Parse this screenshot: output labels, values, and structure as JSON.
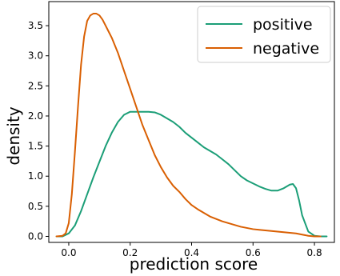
{
  "chart_data": {
    "type": "line",
    "xlabel": "prediction score",
    "ylabel": "density",
    "xlim": [
      -0.065,
      0.865
    ],
    "ylim": [
      -0.1,
      3.9
    ],
    "xticks": [
      0.0,
      0.2,
      0.4,
      0.6,
      0.8
    ],
    "yticks": [
      0.0,
      0.5,
      1.0,
      1.5,
      2.0,
      2.5,
      3.0,
      3.5
    ],
    "xtick_labels": [
      "0.0",
      "0.2",
      "0.4",
      "0.6",
      "0.8"
    ],
    "ytick_labels": [
      "0.0",
      "0.5",
      "1.0",
      "1.5",
      "2.0",
      "2.5",
      "3.0",
      "3.5"
    ],
    "grid": false,
    "legend": "top-right",
    "series": [
      {
        "name": "positive",
        "color": "#1b9e77",
        "x": [
          -0.04,
          -0.02,
          0.0,
          0.02,
          0.04,
          0.06,
          0.08,
          0.1,
          0.12,
          0.14,
          0.16,
          0.18,
          0.2,
          0.22,
          0.24,
          0.26,
          0.28,
          0.3,
          0.32,
          0.34,
          0.36,
          0.38,
          0.4,
          0.42,
          0.44,
          0.46,
          0.48,
          0.5,
          0.52,
          0.54,
          0.56,
          0.58,
          0.6,
          0.62,
          0.64,
          0.66,
          0.68,
          0.7,
          0.72,
          0.73,
          0.74,
          0.75,
          0.76,
          0.78,
          0.8,
          0.82,
          0.84
        ],
        "y": [
          0.0,
          0.0,
          0.05,
          0.18,
          0.42,
          0.7,
          0.98,
          1.24,
          1.5,
          1.72,
          1.9,
          2.02,
          2.07,
          2.07,
          2.07,
          2.07,
          2.06,
          2.02,
          1.96,
          1.9,
          1.82,
          1.72,
          1.64,
          1.56,
          1.48,
          1.42,
          1.36,
          1.28,
          1.2,
          1.1,
          1.0,
          0.93,
          0.88,
          0.83,
          0.79,
          0.76,
          0.76,
          0.8,
          0.86,
          0.87,
          0.8,
          0.6,
          0.35,
          0.08,
          0.01,
          0.0,
          0.0
        ]
      },
      {
        "name": "negative",
        "color": "#d95f02",
        "x": [
          -0.04,
          -0.02,
          -0.01,
          0.0,
          0.01,
          0.02,
          0.03,
          0.04,
          0.05,
          0.06,
          0.07,
          0.08,
          0.09,
          0.1,
          0.11,
          0.12,
          0.13,
          0.14,
          0.16,
          0.18,
          0.2,
          0.22,
          0.24,
          0.26,
          0.28,
          0.3,
          0.32,
          0.34,
          0.36,
          0.38,
          0.4,
          0.42,
          0.44,
          0.46,
          0.48,
          0.5,
          0.52,
          0.54,
          0.56,
          0.58,
          0.6,
          0.62,
          0.64,
          0.66,
          0.68,
          0.7,
          0.72,
          0.74,
          0.76,
          0.78,
          0.8,
          0.82
        ],
        "y": [
          0.0,
          0.01,
          0.05,
          0.22,
          0.7,
          1.4,
          2.15,
          2.85,
          3.32,
          3.58,
          3.67,
          3.7,
          3.7,
          3.67,
          3.6,
          3.5,
          3.4,
          3.3,
          3.05,
          2.75,
          2.45,
          2.15,
          1.85,
          1.6,
          1.35,
          1.15,
          0.98,
          0.84,
          0.74,
          0.62,
          0.52,
          0.45,
          0.39,
          0.33,
          0.29,
          0.25,
          0.22,
          0.19,
          0.16,
          0.14,
          0.12,
          0.11,
          0.1,
          0.09,
          0.08,
          0.07,
          0.06,
          0.05,
          0.03,
          0.01,
          0.0,
          0.0
        ]
      }
    ]
  }
}
